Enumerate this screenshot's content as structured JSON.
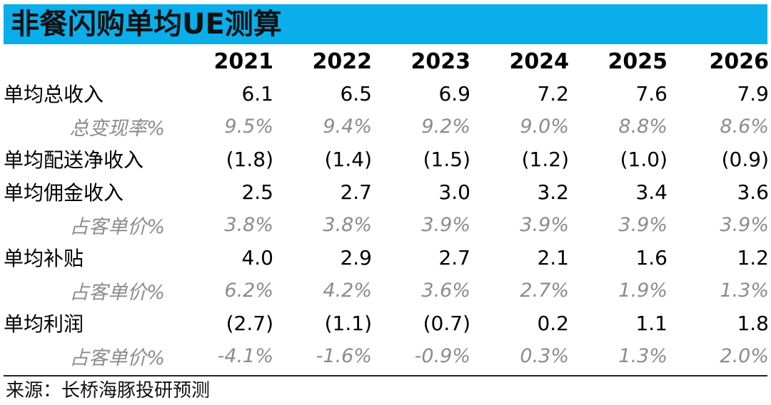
{
  "title": "非餐闪购单均UE测算",
  "years": [
    "2021",
    "2022",
    "2023",
    "2024",
    "2025",
    "2026"
  ],
  "rows": [
    {
      "label": "单均总收入",
      "values": [
        "6.1",
        "6.5",
        "6.9",
        "7.2",
        "7.6",
        "7.9"
      ]
    },
    {
      "label": "总变现率%",
      "values": [
        "9.5%",
        "9.4%",
        "9.2%",
        "9.0%",
        "8.8%",
        "8.6%"
      ]
    },
    {
      "label": "单均配送净收入",
      "values": [
        "(1.8)",
        "(1.4)",
        "(1.5)",
        "(1.2)",
        "(1.0)",
        "(0.9)"
      ]
    },
    {
      "label": "单均佣金收入",
      "values": [
        "2.5",
        "2.7",
        "3.0",
        "3.2",
        "3.4",
        "3.6"
      ]
    },
    {
      "label": "占客单价%",
      "values": [
        "3.8%",
        "3.8%",
        "3.9%",
        "3.9%",
        "3.9%",
        "3.9%"
      ]
    },
    {
      "label": "单均补贴",
      "values": [
        "4.0",
        "2.9",
        "2.7",
        "2.1",
        "1.6",
        "1.2"
      ]
    },
    {
      "label": "占客单价%",
      "values": [
        "6.2%",
        "4.2%",
        "3.6%",
        "2.7%",
        "1.9%",
        "1.3%"
      ]
    },
    {
      "label": "单均利润",
      "values": [
        "(2.7)",
        "(1.1)",
        "(0.7)",
        "0.2",
        "1.1",
        "1.8"
      ]
    },
    {
      "label": "占客单价%",
      "values": [
        "-4.1%",
        "-1.6%",
        "-0.9%",
        "0.3%",
        "1.3%",
        "2.0%"
      ]
    }
  ],
  "source": "来源：长桥海豚投研预测",
  "colors": {
    "header_bg": "#0aaeea",
    "sub_text": "#8c8c8c"
  }
}
